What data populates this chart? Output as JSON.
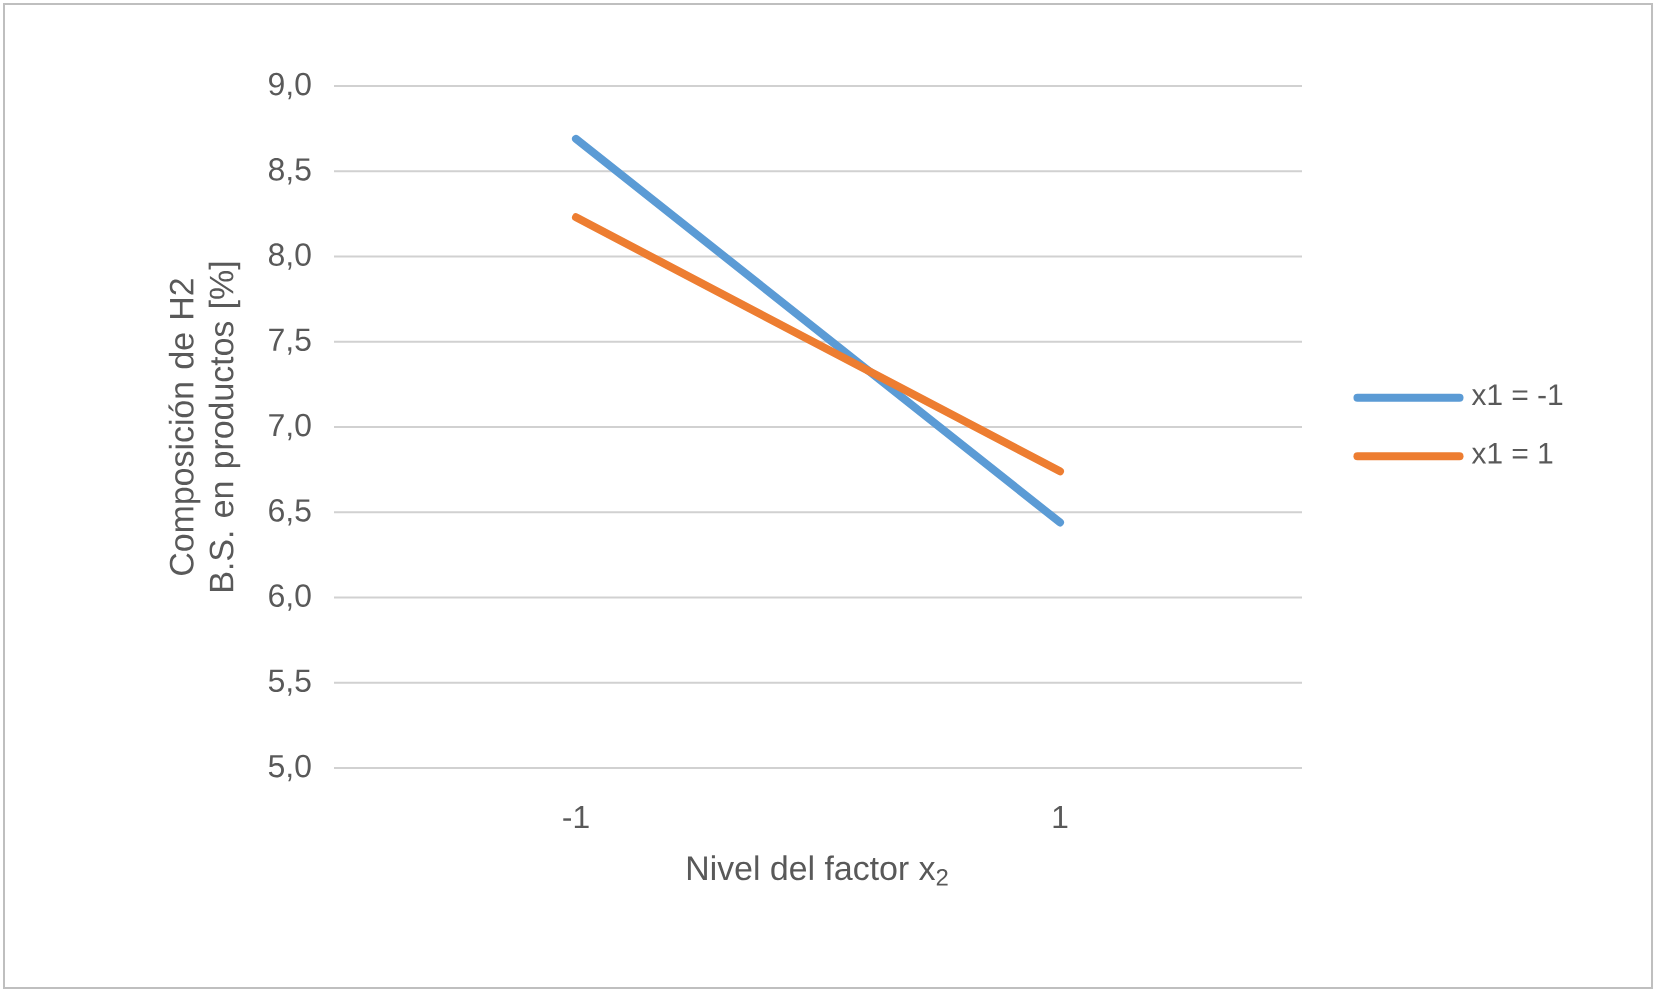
{
  "chart_data": {
    "type": "line",
    "xlabel": "Nivel del factor x$_{2}$",
    "ylabel": "Composición de H2 B.S. en productos [%]",
    "categories": [
      "-1",
      "1"
    ],
    "series": [
      {
        "name": "x1 = -1",
        "color": "#5b9bd5",
        "values": [
          8.69,
          6.44
        ]
      },
      {
        "name": "x1 = 1",
        "color": "#ed7d31",
        "values": [
          8.23,
          6.74
        ]
      }
    ],
    "ylim": [
      5.0,
      9.0
    ],
    "yticks": [
      {
        "value": 5.0,
        "label": "5,0"
      },
      {
        "value": 5.5,
        "label": "5,5"
      },
      {
        "value": 6.0,
        "label": "6,0"
      },
      {
        "value": 6.5,
        "label": "6,5"
      },
      {
        "value": 7.0,
        "label": "7,0"
      },
      {
        "value": 7.5,
        "label": "7,5"
      },
      {
        "value": 8.0,
        "label": "8,0"
      },
      {
        "value": 8.5,
        "label": "8,5"
      },
      {
        "value": 9.0,
        "label": "9,0"
      }
    ],
    "grid": "y",
    "legend": "right",
    "marker": "none",
    "line_style": "solid"
  }
}
